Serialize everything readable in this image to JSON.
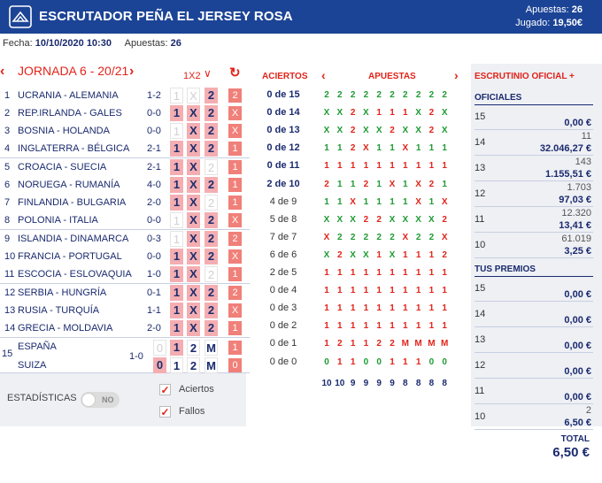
{
  "header": {
    "title": "ESCRUTADOR PEÑA EL JERSEY ROSA",
    "apuestas_label": "Apuestas:",
    "apuestas_value": "26",
    "jugado_label": "Jugado:",
    "jugado_value": "19,50€"
  },
  "info": {
    "fecha_label": "Fecha:",
    "fecha_value": "10/10/2020 10:30",
    "apuestas_label": "Apuestas:",
    "apuestas_value": "26"
  },
  "jornada": {
    "title": "JORNADA 6 - 20/21",
    "selector": "1X2"
  },
  "columns": {
    "aciertos": "ACIERTOS",
    "apuestas": "APUESTAS",
    "escrutinio": "ESCRUTINIO OFICIAL +"
  },
  "matches": [
    {
      "num": "1",
      "match": "UCRANIA - ALEMANIA",
      "score": "1-2",
      "picks": [
        "",
        "",
        "2"
      ],
      "result": "2"
    },
    {
      "num": "2",
      "match": "REP.IRLANDA - GALES",
      "score": "0-0",
      "picks": [
        "1",
        "X",
        "2"
      ],
      "result": "X"
    },
    {
      "num": "3",
      "match": "BOSNIA - HOLANDA",
      "score": "0-0",
      "picks": [
        "",
        "X",
        "2"
      ],
      "result": "X"
    },
    {
      "num": "4",
      "match": "INGLATERRA - BÉLGICA",
      "score": "2-1",
      "picks": [
        "1",
        "X",
        "2"
      ],
      "result": "1"
    },
    {
      "num": "5",
      "match": "CROACIA - SUECIA",
      "score": "2-1",
      "picks": [
        "1",
        "X",
        ""
      ],
      "result": "1"
    },
    {
      "num": "6",
      "match": "NORUEGA - RUMANÍA",
      "score": "4-0",
      "picks": [
        "1",
        "X",
        "2"
      ],
      "result": "1"
    },
    {
      "num": "7",
      "match": "FINLANDIA - BULGARIA",
      "score": "2-0",
      "picks": [
        "1",
        "X",
        ""
      ],
      "result": "1"
    },
    {
      "num": "8",
      "match": "POLONIA - ITALIA",
      "score": "0-0",
      "picks": [
        "",
        "X",
        "2"
      ],
      "result": "X"
    },
    {
      "num": "9",
      "match": "ISLANDIA - DINAMARCA",
      "score": "0-3",
      "picks": [
        "",
        "X",
        "2"
      ],
      "result": "2"
    },
    {
      "num": "10",
      "match": "FRANCIA - PORTUGAL",
      "score": "0-0",
      "picks": [
        "1",
        "X",
        "2"
      ],
      "result": "X"
    },
    {
      "num": "11",
      "match": "ESCOCIA - ESLOVAQUIA",
      "score": "1-0",
      "picks": [
        "1",
        "X",
        ""
      ],
      "result": "1"
    },
    {
      "num": "12",
      "match": "SERBIA - HUNGRÍA",
      "score": "0-1",
      "picks": [
        "1",
        "X",
        "2"
      ],
      "result": "2"
    },
    {
      "num": "13",
      "match": "RUSIA - TURQUÍA",
      "score": "1-1",
      "picks": [
        "1",
        "X",
        "2"
      ],
      "result": "X"
    },
    {
      "num": "14",
      "match": "GRECIA - MOLDAVIA",
      "score": "2-0",
      "picks": [
        "1",
        "X",
        "2"
      ],
      "result": "1"
    }
  ],
  "pleno": {
    "num": "15",
    "home": "ESPAÑA",
    "away": "SUIZA",
    "score": "1-0",
    "home_row": {
      "a": "0",
      "b": "1",
      "c": "2",
      "d": "M",
      "result": "1"
    },
    "away_row": {
      "a": "0",
      "b": "1",
      "c": "2",
      "d": "M",
      "result": "0"
    },
    "home_on": [
      "b"
    ],
    "away_on": [
      "a"
    ]
  },
  "aciertos": [
    "0 de 15",
    "0 de 14",
    "0 de 13",
    "0 de 12",
    "0 de 11",
    "2 de 10",
    "4 de 9",
    "5 de 8",
    "7 de 7",
    "6 de 6",
    "2 de 5",
    "0 de 4",
    "0 de 3",
    "0 de 2",
    "0 de 1",
    "0 de 0"
  ],
  "apuestas_rows": [
    "2222222222",
    "XX2X111X2X",
    "XX2XX2XX2X",
    "112X11X111",
    "1111111111",
    "21121X1X21",
    "11X1111X1X",
    "XXX22XXXX2",
    "X22222X22X",
    "X2XX1X1112",
    "1111111111",
    "1111111111",
    "1111111111",
    "1111111111",
    "12112 2MMMM",
    "0110011100"
  ],
  "apuestas_totals": [
    "10",
    "10",
    "9",
    "9",
    "9",
    "9",
    "8",
    "8",
    "8",
    "8"
  ],
  "oficiales": {
    "title": "OFICIALES",
    "rows": [
      {
        "cat": "15",
        "count": "",
        "amount": "0,00 €"
      },
      {
        "cat": "14",
        "count": "11",
        "amount": "32.046,27 €"
      },
      {
        "cat": "13",
        "count": "143",
        "amount": "1.155,51 €"
      },
      {
        "cat": "12",
        "count": "1.703",
        "amount": "97,03 €"
      },
      {
        "cat": "11",
        "count": "12.320",
        "amount": "13,41 €"
      },
      {
        "cat": "10",
        "count": "61.019",
        "amount": "3,25 €"
      }
    ]
  },
  "premios": {
    "title": "TUS PREMIOS",
    "rows": [
      {
        "cat": "15",
        "count": "",
        "amount": "0,00 €"
      },
      {
        "cat": "14",
        "count": "",
        "amount": "0,00 €"
      },
      {
        "cat": "13",
        "count": "",
        "amount": "0,00 €"
      },
      {
        "cat": "12",
        "count": "",
        "amount": "0,00 €"
      },
      {
        "cat": "11",
        "count": "",
        "amount": "0,00 €"
      },
      {
        "cat": "10",
        "count": "2",
        "amount": "6,50 €"
      }
    ]
  },
  "total": {
    "label": "TOTAL",
    "value": "6,50 €"
  },
  "footer": {
    "stats_label": "ESTADÍSTICAS",
    "toggle_text": "NO",
    "aciertos_label": "Aciertos",
    "fallos_label": "Fallos"
  },
  "colors": {
    "header_bg": "#1c4496",
    "accent_red": "#e2231a",
    "pick_on": "#f4aeb2",
    "result_badge": "#f08079",
    "win_green": "#1e9a34",
    "navy": "#1a2a6e"
  }
}
